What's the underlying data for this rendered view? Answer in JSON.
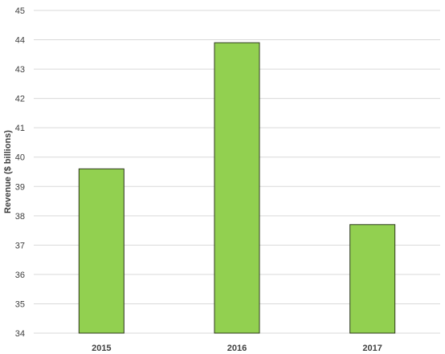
{
  "chart_data": {
    "type": "bar",
    "title": "",
    "xlabel": "",
    "ylabel": "Revenue ($ billions)",
    "categories": [
      "2015",
      "2016",
      "2017"
    ],
    "values": [
      39.6,
      43.9,
      37.7
    ],
    "ylim": [
      34,
      45
    ],
    "yticks": [
      34,
      35,
      36,
      37,
      38,
      39,
      40,
      41,
      42,
      43,
      44,
      45
    ],
    "grid": true,
    "legend": "none",
    "colors": {
      "bar_fill": "#92D050",
      "bar_stroke": "#2F3A1F",
      "grid": "#D9D9D9",
      "text": "#404040"
    }
  }
}
